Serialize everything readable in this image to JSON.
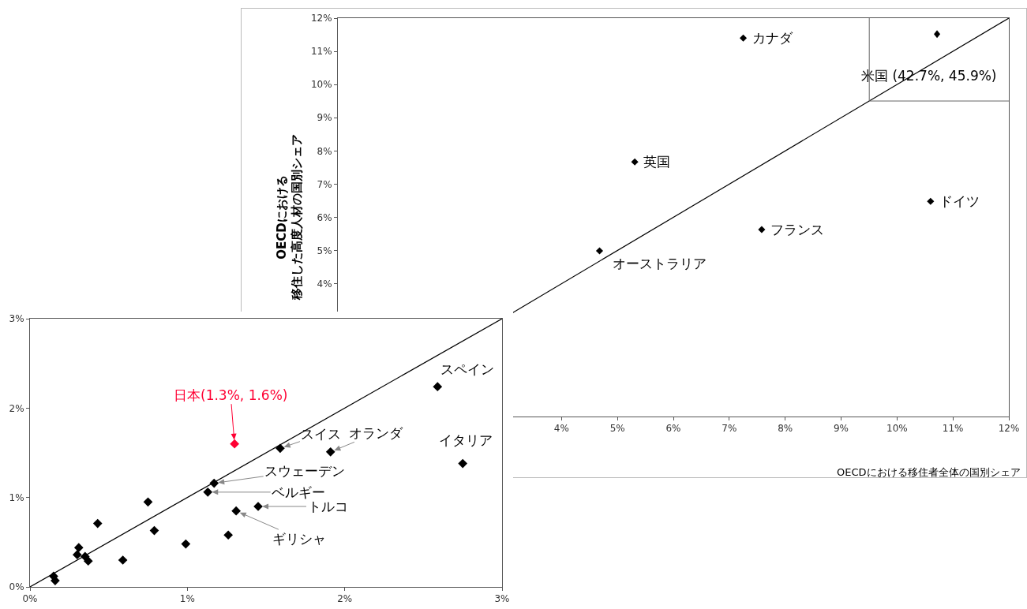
{
  "chart_data": [
    {
      "type": "scatter",
      "ylabel": "OECDにおける移住した高度人材の国別シェア",
      "xlabel": "OECDにおける移住者全体の国別シェア",
      "marker": "diamond",
      "grid": false,
      "xlim": [
        0,
        12
      ],
      "ylim": [
        0,
        12
      ],
      "xticks": [
        {
          "value": 4,
          "label": "4%"
        },
        {
          "value": 5,
          "label": "5%"
        },
        {
          "value": 6,
          "label": "6%"
        },
        {
          "value": 7,
          "label": "7%"
        },
        {
          "value": 8,
          "label": "8%"
        },
        {
          "value": 9,
          "label": "9%"
        },
        {
          "value": 10,
          "label": "10%"
        },
        {
          "value": 11,
          "label": "11%"
        },
        {
          "value": 12,
          "label": "12%"
        }
      ],
      "yticks": [
        {
          "value": 4,
          "label": "4%"
        },
        {
          "value": 5,
          "label": "5%"
        },
        {
          "value": 6,
          "label": "6%"
        },
        {
          "value": 7,
          "label": "7%"
        },
        {
          "value": 8,
          "label": "8%"
        },
        {
          "value": 9,
          "label": "9%"
        },
        {
          "value": 10,
          "label": "10%"
        },
        {
          "value": 11,
          "label": "11%"
        },
        {
          "value": 12,
          "label": "12%"
        }
      ],
      "series": [
        {
          "type": "scatter",
          "color": "#000000",
          "x": [
            7.25,
            5.31,
            10.6,
            7.58,
            4.68
          ],
          "values": [
            11.4,
            7.67,
            6.48,
            5.63,
            4.99
          ]
        },
        {
          "type": "line",
          "color": "#000000",
          "marker": "none",
          "x": [
            0,
            12
          ],
          "values": [
            0,
            12
          ]
        }
      ],
      "annotations": [
        {
          "text": "カナダ",
          "x": 7.25,
          "y": 11.4
        },
        {
          "text": "英国",
          "x": 5.31,
          "y": 7.67
        },
        {
          "text": "ドイツ",
          "x": 10.6,
          "y": 6.48
        },
        {
          "text": "フランス",
          "x": 7.58,
          "y": 5.63
        },
        {
          "text": "オーストラリア",
          "x": 4.68,
          "y": 4.99
        },
        "米国 (42.7%, 45.9%)"
      ]
    },
    {
      "type": "scatter",
      "marker": "diamond",
      "grid": false,
      "xlim": [
        0,
        3
      ],
      "ylim": [
        0,
        3
      ],
      "xticks": [
        {
          "value": 0,
          "label": "0%"
        },
        {
          "value": 1,
          "label": "1%"
        },
        {
          "value": 2,
          "label": "2%"
        },
        {
          "value": 3,
          "label": "3%"
        }
      ],
      "yticks": [
        {
          "value": 0,
          "label": "0%"
        },
        {
          "value": 1,
          "label": "1%"
        },
        {
          "value": 2,
          "label": "2%"
        },
        {
          "value": 3,
          "label": "3%"
        }
      ],
      "series": [
        {
          "type": "scatter",
          "color": "#000000",
          "x": [
            2.59,
            2.75,
            1.59,
            1.91,
            1.17,
            1.13,
            1.45,
            1.31,
            0.75,
            0.43,
            0.79,
            0.99,
            1.26,
            0.59,
            0.31,
            0.3,
            0.35,
            0.37,
            0.15,
            0.16
          ],
          "values": [
            2.24,
            1.38,
            1.55,
            1.51,
            1.16,
            1.06,
            0.9,
            0.85,
            0.95,
            0.71,
            0.63,
            0.48,
            0.58,
            0.3,
            0.44,
            0.36,
            0.34,
            0.29,
            0.12,
            0.07
          ]
        },
        {
          "type": "scatter",
          "color": "#ff0033",
          "x": [
            1.3
          ],
          "values": [
            1.6
          ]
        },
        {
          "type": "line",
          "color": "#000000",
          "marker": "none",
          "x": [
            0,
            3
          ],
          "values": [
            0,
            3
          ]
        }
      ],
      "annotations": [
        {
          "text": "日本(1.3%, 1.6%)",
          "x": 1.3,
          "y": 1.6
        },
        {
          "text": "スペイン",
          "x": 2.59,
          "y": 2.24
        },
        {
          "text": "イタリア",
          "x": 2.75,
          "y": 1.38
        },
        {
          "text": "スイス",
          "x": 1.59,
          "y": 1.55
        },
        {
          "text": "オランダ",
          "x": 1.91,
          "y": 1.51
        },
        {
          "text": "スウェーデン",
          "x": 1.17,
          "y": 1.16
        },
        {
          "text": "ベルギー",
          "x": 1.13,
          "y": 1.06
        },
        {
          "text": "トルコ",
          "x": 1.45,
          "y": 0.9
        },
        {
          "text": "ギリシャ",
          "x": 1.31,
          "y": 0.85
        }
      ]
    }
  ]
}
